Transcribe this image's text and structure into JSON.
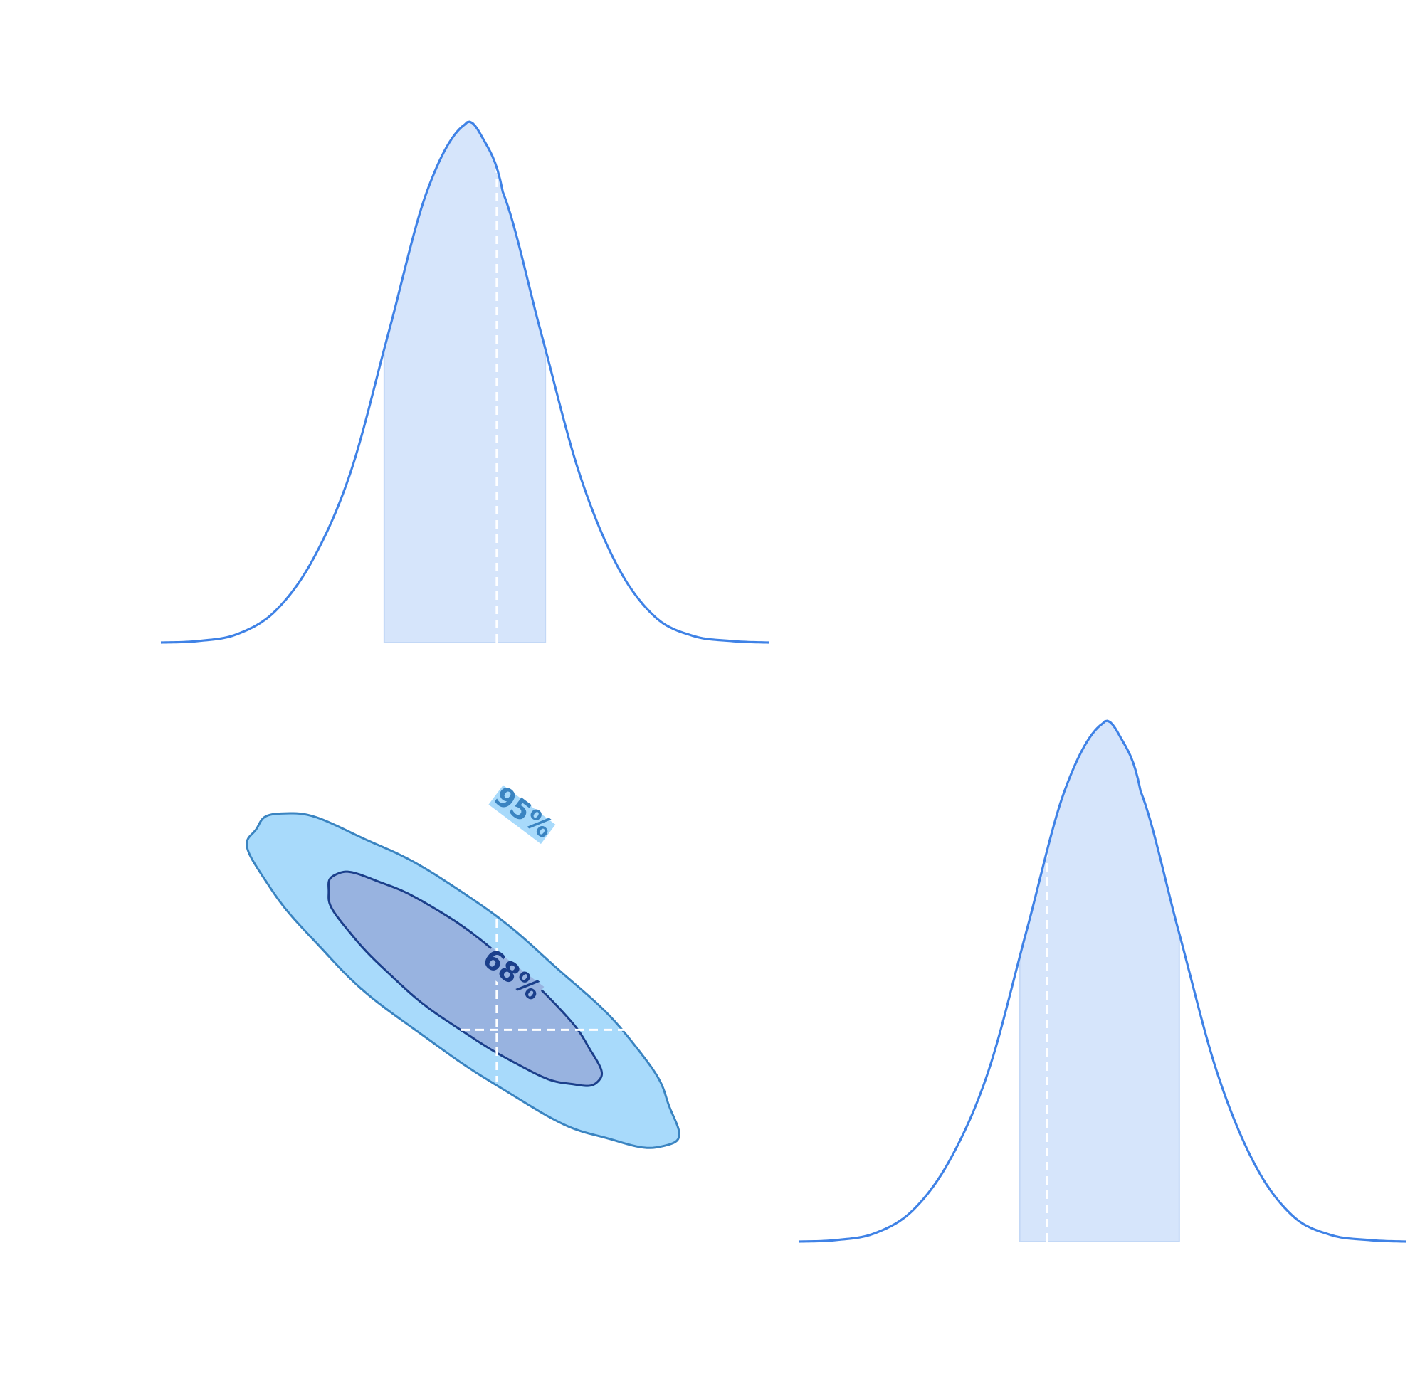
{
  "chart_data": [
    {
      "type": "line",
      "panel": "marginal-param-1",
      "axes_visible": false,
      "grid": false,
      "curve": {
        "x": [
          -4.0,
          -3.5,
          -3.0,
          -2.5,
          -2.0,
          -1.5,
          -1.0,
          -0.5,
          0.0,
          0.25,
          0.5,
          1.0,
          1.5,
          2.0,
          2.5,
          3.0,
          3.5,
          4.0
        ],
        "y": [
          0.0,
          0.003,
          0.016,
          0.06,
          0.16,
          0.33,
          0.6,
          0.87,
          1.0,
          0.97,
          0.87,
          0.6,
          0.33,
          0.15,
          0.05,
          0.013,
          0.003,
          0.0
        ]
      },
      "credible_interval": [
        -1.06,
        1.06
      ],
      "reference_value": 0.42,
      "xlim": [
        -4.0,
        4.0
      ],
      "ylim": [
        0,
        1.0
      ],
      "colors": {
        "line": "#3f82e6",
        "fill": "#d6e5fb",
        "reference": "#ffffff"
      }
    },
    {
      "type": "line",
      "panel": "marginal-param-2",
      "axes_visible": false,
      "grid": false,
      "curve": {
        "x": [
          -4.0,
          -3.5,
          -3.0,
          -2.5,
          -2.0,
          -1.5,
          -1.0,
          -0.5,
          0.0,
          0.25,
          0.5,
          1.0,
          1.5,
          2.0,
          2.5,
          3.0,
          3.5,
          4.0
        ],
        "y": [
          0.0,
          0.003,
          0.016,
          0.06,
          0.16,
          0.33,
          0.6,
          0.87,
          1.0,
          0.97,
          0.87,
          0.6,
          0.33,
          0.15,
          0.05,
          0.013,
          0.003,
          0.0
        ]
      },
      "credible_interval": [
        -1.09,
        1.01
      ],
      "reference_value": -0.73,
      "xlim": [
        -4.0,
        4.0
      ],
      "ylim": [
        0,
        1.0
      ],
      "colors": {
        "line": "#3f82e6",
        "fill": "#d6e5fb",
        "reference": "#ffffff"
      }
    },
    {
      "type": "contour",
      "panel": "joint-param-1-param-2",
      "axes_visible": false,
      "grid": false,
      "center": [
        -0.03,
        0.05
      ],
      "correlation": -0.85,
      "levels": [
        {
          "label": "95%",
          "fill": "#a8dafb",
          "line": "#3a84c1"
        },
        {
          "label": "68%",
          "fill": "#98b3e0",
          "line": "#1b3f8b"
        }
      ],
      "reference_point": [
        0.42,
        -0.73
      ],
      "xlim": [
        -4.0,
        4.0
      ],
      "ylim": [
        -4.0,
        4.0
      ]
    }
  ]
}
